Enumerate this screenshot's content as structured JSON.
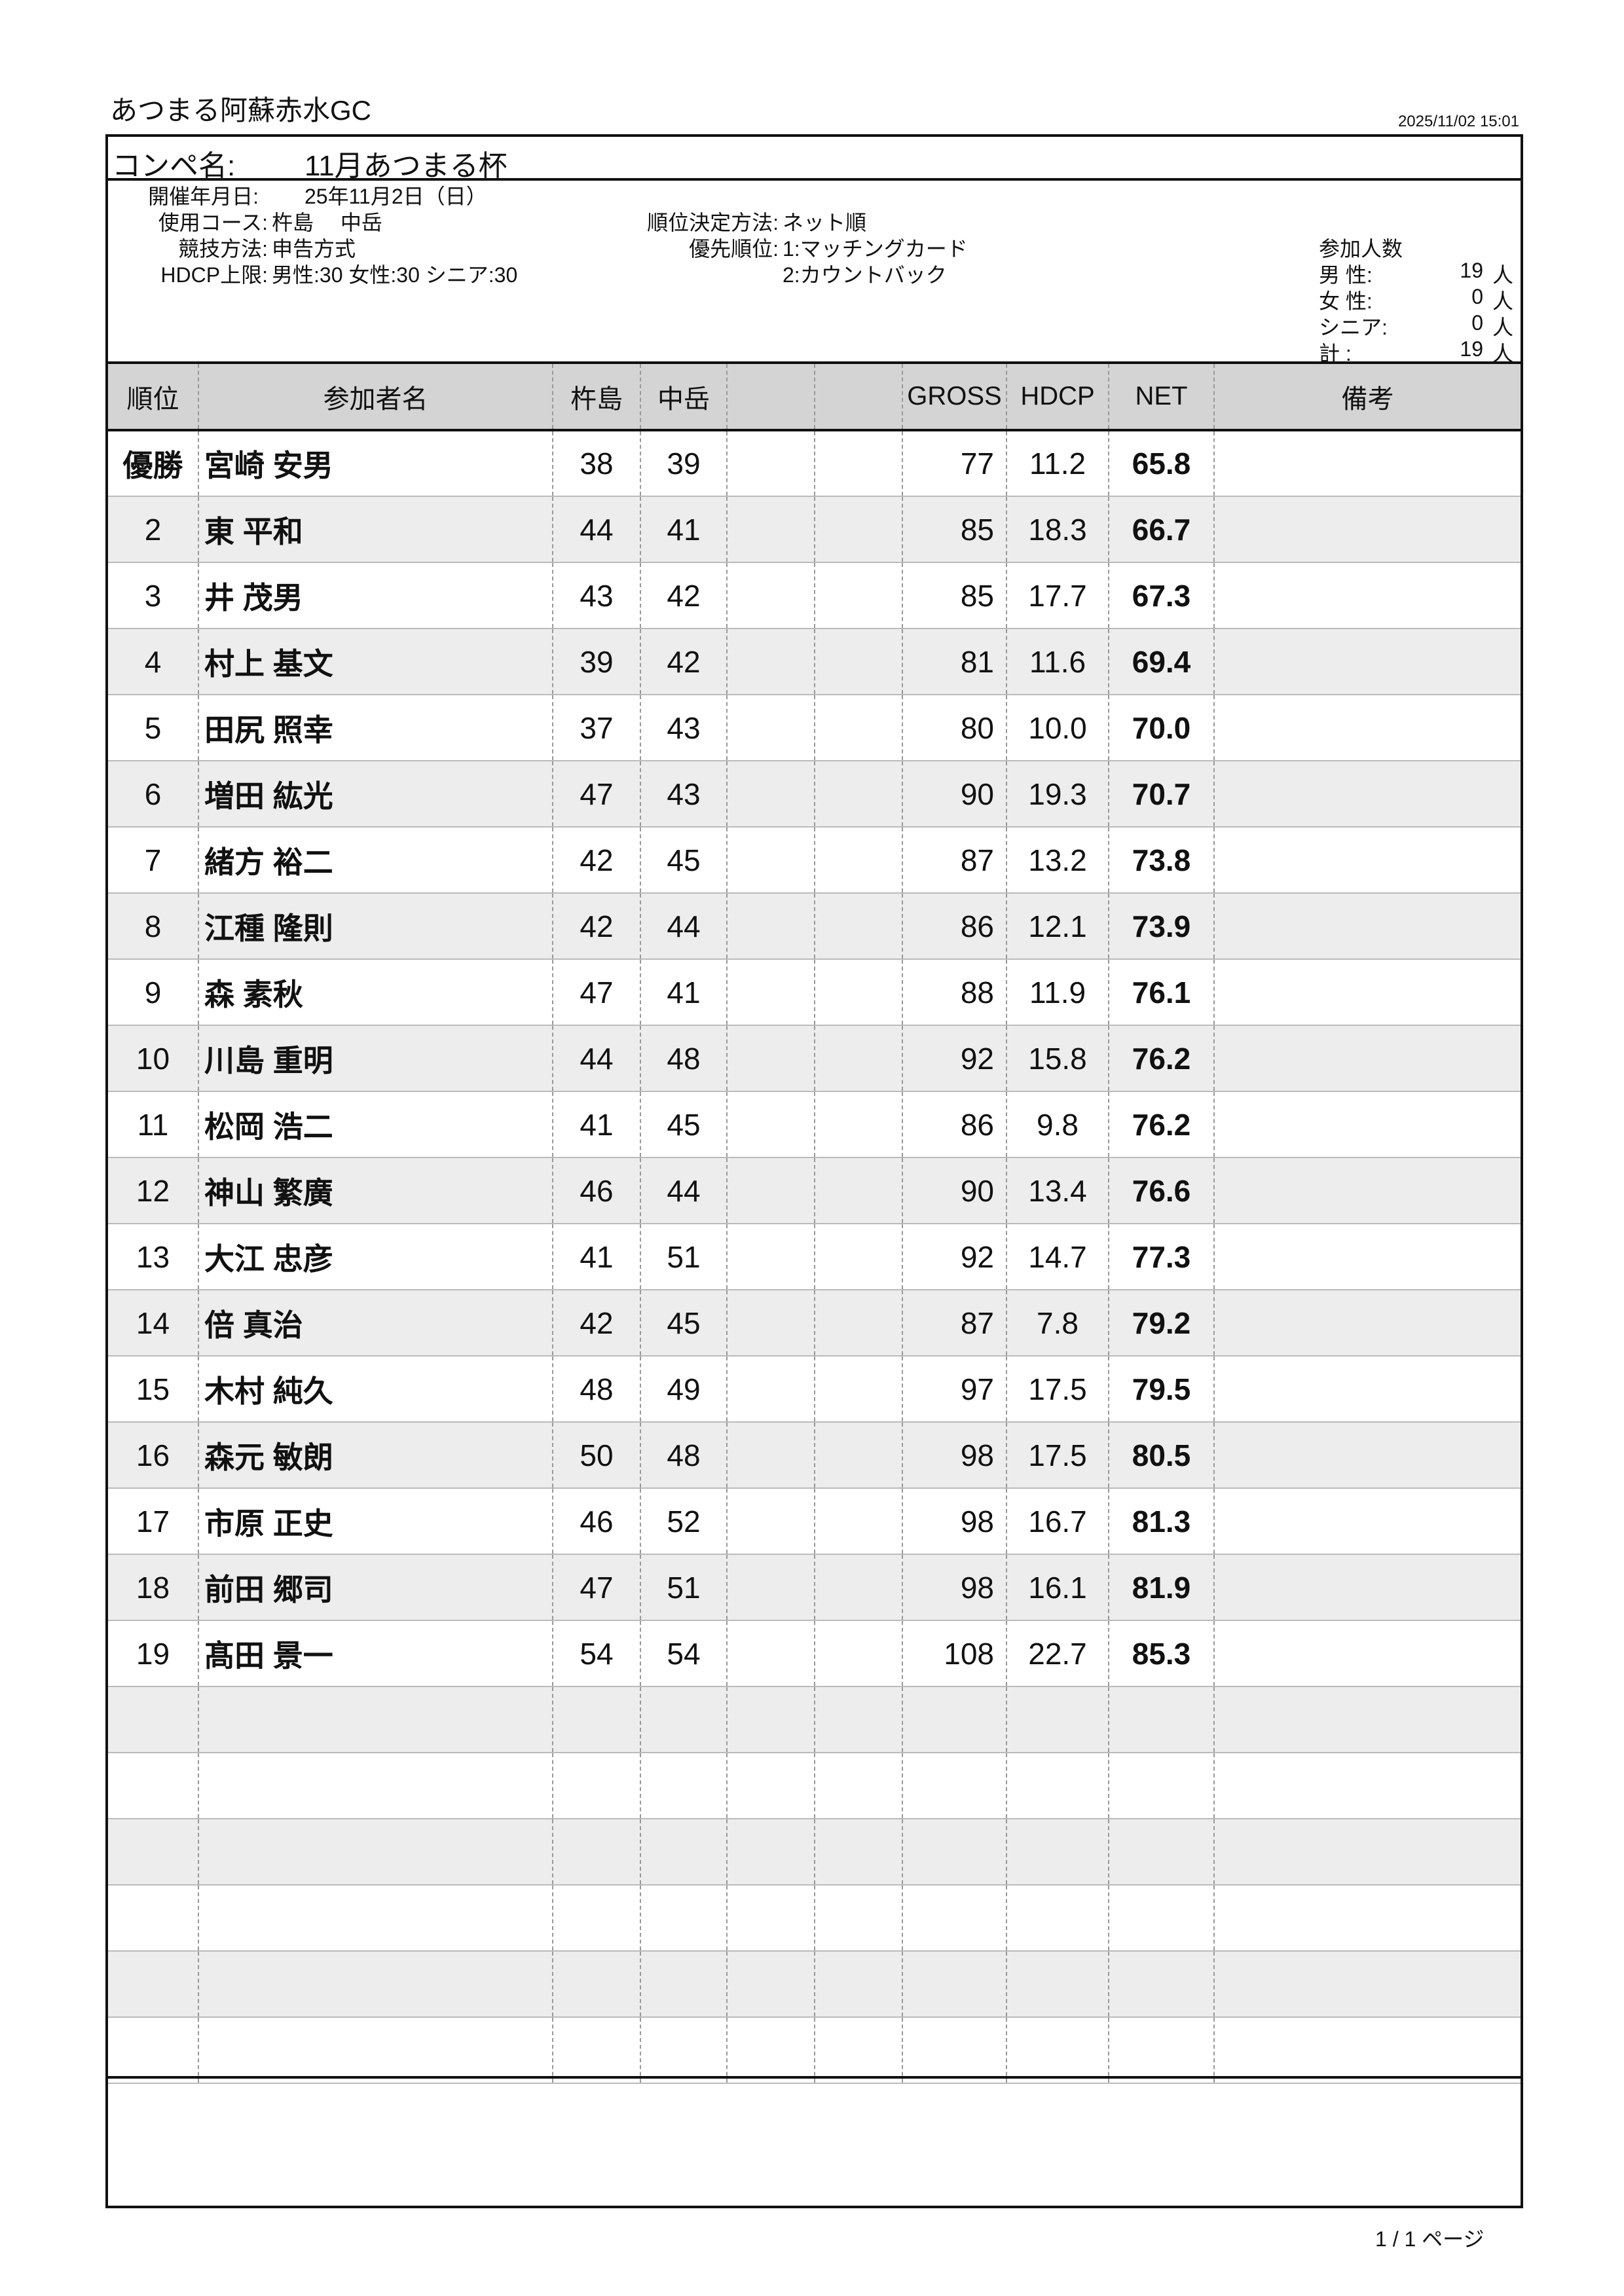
{
  "venue": "あつまる阿蘇赤水GC",
  "printed_at": "2025/11/02 15:01",
  "competition": {
    "label": "コンペ名:",
    "name": "11月あつまる杯"
  },
  "info": {
    "date_label": "開催年月日:",
    "date": "25年11月2日（日）",
    "course_label": "使用コース:",
    "course": "杵島　 中岳",
    "method_label": "競技方法:",
    "method": "申告方式",
    "hdcp_label": "HDCP上限:",
    "hdcp": "男性:30 女性:30 シニア:30",
    "ranking_label": "順位決定方法:",
    "ranking": "ネット順",
    "priority_label": "優先順位:",
    "priority_1": "1:マッチングカード",
    "priority_2": "2:カウントバック"
  },
  "participants": {
    "title": "参加人数",
    "rows": [
      {
        "label": "男 性:",
        "count": "19",
        "unit": "人"
      },
      {
        "label": "女 性:",
        "count": "0",
        "unit": "人"
      },
      {
        "label": "シニア:",
        "count": "0",
        "unit": "人"
      },
      {
        "label": "計 :",
        "count": "19",
        "unit": "人"
      }
    ]
  },
  "table": {
    "headers": [
      "順位",
      "参加者名",
      "杵島",
      "中岳",
      "",
      "",
      "GROSS",
      "HDCP",
      "NET",
      "備考"
    ],
    "rows": [
      [
        "優勝",
        "宮崎 安男",
        "38",
        "39",
        "",
        "",
        "77",
        "11.2",
        "65.8",
        ""
      ],
      [
        "2",
        "東 平和",
        "44",
        "41",
        "",
        "",
        "85",
        "18.3",
        "66.7",
        ""
      ],
      [
        "3",
        "井 茂男",
        "43",
        "42",
        "",
        "",
        "85",
        "17.7",
        "67.3",
        ""
      ],
      [
        "4",
        "村上 基文",
        "39",
        "42",
        "",
        "",
        "81",
        "11.6",
        "69.4",
        ""
      ],
      [
        "5",
        "田尻 照幸",
        "37",
        "43",
        "",
        "",
        "80",
        "10.0",
        "70.0",
        ""
      ],
      [
        "6",
        "増田 紘光",
        "47",
        "43",
        "",
        "",
        "90",
        "19.3",
        "70.7",
        ""
      ],
      [
        "7",
        "緒方 裕二",
        "42",
        "45",
        "",
        "",
        "87",
        "13.2",
        "73.8",
        ""
      ],
      [
        "8",
        "江種 隆則",
        "42",
        "44",
        "",
        "",
        "86",
        "12.1",
        "73.9",
        ""
      ],
      [
        "9",
        "森 素秋",
        "47",
        "41",
        "",
        "",
        "88",
        "11.9",
        "76.1",
        ""
      ],
      [
        "10",
        "川島 重明",
        "44",
        "48",
        "",
        "",
        "92",
        "15.8",
        "76.2",
        ""
      ],
      [
        "11",
        "松岡 浩二",
        "41",
        "45",
        "",
        "",
        "86",
        "9.8",
        "76.2",
        ""
      ],
      [
        "12",
        "神山 繁廣",
        "46",
        "44",
        "",
        "",
        "90",
        "13.4",
        "76.6",
        ""
      ],
      [
        "13",
        "大江 忠彦",
        "41",
        "51",
        "",
        "",
        "92",
        "14.7",
        "77.3",
        ""
      ],
      [
        "14",
        "倍 真治",
        "42",
        "45",
        "",
        "",
        "87",
        "7.8",
        "79.2",
        ""
      ],
      [
        "15",
        "木村 純久",
        "48",
        "49",
        "",
        "",
        "97",
        "17.5",
        "79.5",
        ""
      ],
      [
        "16",
        "森元 敏朗",
        "50",
        "48",
        "",
        "",
        "98",
        "17.5",
        "80.5",
        ""
      ],
      [
        "17",
        "市原 正史",
        "46",
        "52",
        "",
        "",
        "98",
        "16.7",
        "81.3",
        ""
      ],
      [
        "18",
        "前田 郷司",
        "47",
        "51",
        "",
        "",
        "98",
        "16.1",
        "81.9",
        ""
      ],
      [
        "19",
        "髙田 景一",
        "54",
        "54",
        "",
        "",
        "108",
        "22.7",
        "85.3",
        ""
      ],
      [
        "",
        "",
        "",
        "",
        "",
        "",
        "",
        "",
        "",
        ""
      ],
      [
        "",
        "",
        "",
        "",
        "",
        "",
        "",
        "",
        "",
        ""
      ],
      [
        "",
        "",
        "",
        "",
        "",
        "",
        "",
        "",
        "",
        ""
      ],
      [
        "",
        "",
        "",
        "",
        "",
        "",
        "",
        "",
        "",
        ""
      ],
      [
        "",
        "",
        "",
        "",
        "",
        "",
        "",
        "",
        "",
        ""
      ],
      [
        "",
        "",
        "",
        "",
        "",
        "",
        "",
        "",
        "",
        ""
      ]
    ]
  },
  "page_number": "1 / 1 ページ"
}
